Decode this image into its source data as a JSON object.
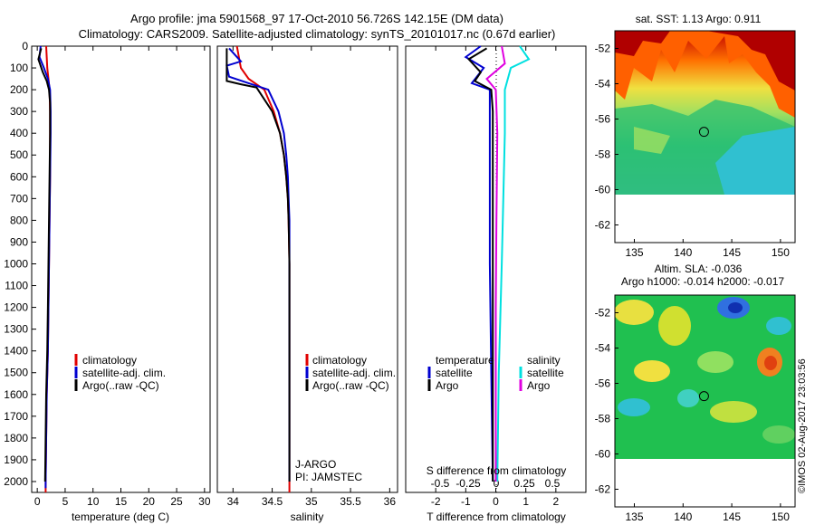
{
  "header": {
    "title_line1": "Argo profile: jma 5901568_97 17-Oct-2010 56.726S 142.15E (DM data)",
    "title_line2": "Climatology: CARS2009. Satellite-adjusted climatology: synTS_20101017.nc (0.67d earlier)"
  },
  "colors": {
    "climatology": "#e00000",
    "satellite": "#0000d0",
    "argo": "#000000",
    "salinity_satellite": "#00e0e0",
    "salinity_argo": "#e000e0"
  },
  "legend": {
    "climatology": "climatology",
    "satellite_adj": "satellite-adj. clim.",
    "argo": "Argo(..raw -QC)",
    "temperature_header": "temperature",
    "salinity_header": "salinity",
    "satellite": "satellite",
    "argo_short": "Argo"
  },
  "annotations": {
    "program": "J-ARGO",
    "pi": "PI: JAMSTEC",
    "timestamp": "©IMOS 02-Aug-2017 23:03:56"
  },
  "chart_data": [
    {
      "id": "temperature",
      "type": "line",
      "xlabel": "temperature (deg C)",
      "ylabel": "",
      "xlim": [
        -1,
        31
      ],
      "ylim": [
        2050,
        0
      ],
      "xticks": [
        0,
        5,
        10,
        15,
        20,
        25,
        30
      ],
      "yticks": [
        0,
        100,
        200,
        300,
        400,
        500,
        600,
        700,
        800,
        900,
        1000,
        1100,
        1200,
        1300,
        1400,
        1500,
        1600,
        1700,
        1800,
        1900,
        2000
      ],
      "series": [
        {
          "name": "climatology",
          "color": "#e00000",
          "points": [
            [
              1.6,
              0
            ],
            [
              1.7,
              50
            ],
            [
              1.8,
              100
            ],
            [
              2.0,
              150
            ],
            [
              2.2,
              200
            ],
            [
              2.3,
              300
            ],
            [
              2.3,
              400
            ],
            [
              2.3,
              600
            ],
            [
              2.2,
              800
            ],
            [
              2.1,
              1000
            ],
            [
              2.0,
              1200
            ],
            [
              1.9,
              1400
            ],
            [
              1.7,
              1600
            ],
            [
              1.6,
              1800
            ],
            [
              1.5,
              2000
            ],
            [
              1.5,
              2050
            ]
          ]
        },
        {
          "name": "satellite-adj. clim.",
          "color": "#0000d0",
          "points": [
            [
              0.6,
              0
            ],
            [
              0.4,
              50
            ],
            [
              1.2,
              100
            ],
            [
              1.9,
              150
            ],
            [
              2.3,
              200
            ],
            [
              2.4,
              300
            ],
            [
              2.4,
              400
            ],
            [
              2.3,
              600
            ],
            [
              2.2,
              800
            ],
            [
              2.1,
              1000
            ],
            [
              2.0,
              1200
            ],
            [
              1.9,
              1400
            ],
            [
              1.7,
              1600
            ],
            [
              1.6,
              1800
            ],
            [
              1.5,
              2000
            ],
            [
              1.5,
              2030
            ]
          ]
        },
        {
          "name": "Argo",
          "color": "#000000",
          "points": [
            [
              0.7,
              10
            ],
            [
              0.2,
              60
            ],
            [
              1.0,
              120
            ],
            [
              1.7,
              160
            ],
            [
              2.1,
              200
            ],
            [
              2.3,
              260
            ],
            [
              2.3,
              400
            ],
            [
              2.2,
              600
            ],
            [
              2.1,
              800
            ],
            [
              2.0,
              1000
            ],
            [
              1.9,
              1200
            ],
            [
              1.8,
              1400
            ],
            [
              1.6,
              1600
            ],
            [
              1.5,
              1800
            ],
            [
              1.4,
              2000
            ]
          ]
        }
      ]
    },
    {
      "id": "salinity",
      "type": "line",
      "xlabel": "salinity",
      "xlim": [
        33.8,
        36.1
      ],
      "ylim": [
        2050,
        0
      ],
      "xticks": [
        34,
        34.5,
        35,
        35.5,
        36
      ],
      "series": [
        {
          "name": "climatology",
          "color": "#e00000",
          "points": [
            [
              34.05,
              0
            ],
            [
              34.1,
              100
            ],
            [
              34.2,
              150
            ],
            [
              34.4,
              200
            ],
            [
              34.52,
              300
            ],
            [
              34.6,
              400
            ],
            [
              34.65,
              500
            ],
            [
              34.68,
              600
            ],
            [
              34.7,
              700
            ],
            [
              34.71,
              800
            ],
            [
              34.72,
              1000
            ],
            [
              34.72,
              1200
            ],
            [
              34.72,
              1600
            ],
            [
              34.72,
              2050
            ]
          ]
        },
        {
          "name": "satellite-adj. clim.",
          "color": "#0000d0",
          "points": [
            [
              33.95,
              10
            ],
            [
              34.1,
              70
            ],
            [
              33.92,
              90
            ],
            [
              33.95,
              140
            ],
            [
              34.2,
              170
            ],
            [
              34.45,
              200
            ],
            [
              34.58,
              300
            ],
            [
              34.65,
              400
            ],
            [
              34.68,
              500
            ],
            [
              34.7,
              600
            ],
            [
              34.71,
              700
            ],
            [
              34.72,
              800
            ],
            [
              34.72,
              1000
            ],
            [
              34.72,
              1400
            ],
            [
              34.72,
              2000
            ]
          ]
        },
        {
          "name": "Argo",
          "color": "#000000",
          "points": [
            [
              33.92,
              10
            ],
            [
              33.92,
              160
            ],
            [
              34.1,
              175
            ],
            [
              34.3,
              190
            ],
            [
              34.5,
              300
            ],
            [
              34.6,
              400
            ],
            [
              34.65,
              500
            ],
            [
              34.68,
              600
            ],
            [
              34.7,
              700
            ],
            [
              34.71,
              800
            ],
            [
              34.72,
              1000
            ],
            [
              34.72,
              2000
            ]
          ]
        }
      ]
    },
    {
      "id": "difference",
      "type": "line",
      "xlabel": "T difference from climatology",
      "top_xlabel": "S difference from climatology",
      "xlim": [
        -3,
        3
      ],
      "ylim": [
        2050,
        0
      ],
      "xticks": [
        -2,
        -1,
        0,
        1,
        2
      ],
      "top_xtick_labels": [
        "-0.5",
        "-0.25",
        "0",
        "0.25",
        "0.5"
      ],
      "series": [
        {
          "name": "temperature satellite",
          "color": "#0000d0",
          "points": [
            [
              -0.5,
              0
            ],
            [
              -1.0,
              50
            ],
            [
              -0.4,
              100
            ],
            [
              -0.8,
              170
            ],
            [
              -0.2,
              200
            ],
            [
              -0.2,
              300
            ],
            [
              -0.2,
              600
            ],
            [
              -0.2,
              1000
            ],
            [
              -0.15,
              1500
            ],
            [
              -0.1,
              2000
            ]
          ]
        },
        {
          "name": "temperature Argo",
          "color": "#000000",
          "points": [
            [
              -0.3,
              10
            ],
            [
              -0.9,
              60
            ],
            [
              -0.5,
              120
            ],
            [
              -0.7,
              160
            ],
            [
              -0.15,
              200
            ],
            [
              -0.1,
              300
            ],
            [
              -0.1,
              600
            ],
            [
              -0.1,
              1000
            ],
            [
              -0.1,
              1500
            ],
            [
              -0.1,
              2000
            ]
          ]
        },
        {
          "name": "salinity satellite",
          "color": "#00e0e0",
          "points": [
            [
              0.8,
              0
            ],
            [
              1.1,
              60
            ],
            [
              0.5,
              100
            ],
            [
              0.3,
              200
            ],
            [
              0.3,
              400
            ],
            [
              0.25,
              700
            ],
            [
              0.2,
              1000
            ],
            [
              0.1,
              1500
            ],
            [
              0.05,
              2000
            ]
          ]
        },
        {
          "name": "salinity Argo",
          "color": "#e000e0",
          "points": [
            [
              0.2,
              0
            ],
            [
              0.3,
              80
            ],
            [
              -0.3,
              150
            ],
            [
              0.0,
              200
            ],
            [
              0.05,
              400
            ],
            [
              0.02,
              800
            ],
            [
              0.0,
              1200
            ],
            [
              0.0,
              2000
            ]
          ]
        }
      ]
    },
    {
      "id": "sst_map",
      "type": "heatmap",
      "title": "sat. SST: 1.13 Argo: 0.911",
      "xticks": [
        135,
        140,
        145,
        150
      ],
      "yticks": [
        -52,
        -54,
        -56,
        -58,
        -60,
        -62
      ],
      "xlim": [
        133,
        151.5
      ],
      "ylim": [
        -63,
        -51
      ],
      "data_lat_range": [
        -60,
        -51
      ],
      "marker": [
        142.15,
        -56.726
      ]
    },
    {
      "id": "sla_map",
      "type": "heatmap",
      "title_line1": "Altim. SLA: -0.036",
      "title_line2": "Argo h1000: -0.014 h2000: -0.017",
      "xticks": [
        135,
        140,
        145,
        150
      ],
      "yticks": [
        -52,
        -54,
        -56,
        -58,
        -60,
        -62
      ],
      "xlim": [
        133,
        151.5
      ],
      "ylim": [
        -63,
        -51
      ],
      "data_lat_range": [
        -60,
        -51
      ],
      "marker": [
        142.15,
        -56.726
      ]
    }
  ]
}
